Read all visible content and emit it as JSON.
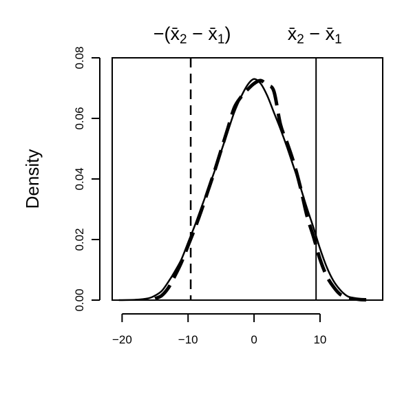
{
  "chart_data": {
    "type": "line",
    "title": "",
    "xlabel": "",
    "ylabel": "Density",
    "xlim": [
      -21.5,
      19.5
    ],
    "ylim": [
      0,
      0.08
    ],
    "x_ticks": [
      -20,
      -10,
      0,
      10
    ],
    "x_tick_labels": [
      "−20",
      "−10",
      "0",
      "10"
    ],
    "y_ticks": [
      0.0,
      0.02,
      0.04,
      0.06,
      0.08
    ],
    "y_tick_labels": [
      "0.00",
      "0.02",
      "0.04",
      "0.06",
      "0.08"
    ],
    "grid": false,
    "legend": "none",
    "series": [
      {
        "style": "solid",
        "x": [
          -20.5,
          -18,
          -16,
          -15,
          -14,
          -13,
          -12,
          -11,
          -10,
          -9,
          -8,
          -7,
          -6,
          -5,
          -4,
          -3,
          -2,
          -1,
          0,
          1,
          2,
          3,
          4,
          5,
          6,
          7,
          8,
          9,
          10,
          11,
          12,
          13,
          14,
          15,
          16
        ],
        "y": [
          0.0,
          0.0001,
          0.0006,
          0.0015,
          0.003,
          0.006,
          0.0095,
          0.0135,
          0.019,
          0.0245,
          0.0305,
          0.0365,
          0.0425,
          0.049,
          0.0555,
          0.062,
          0.067,
          0.071,
          0.073,
          0.0715,
          0.0675,
          0.062,
          0.0565,
          0.0505,
          0.044,
          0.0375,
          0.0305,
          0.024,
          0.017,
          0.011,
          0.0065,
          0.0035,
          0.0015,
          0.0006,
          0.0002
        ]
      },
      {
        "style": "dashed",
        "x": [
          -15,
          -14,
          -13,
          -12,
          -11,
          -10,
          -9,
          -8,
          -7,
          -6,
          -5,
          -4,
          -3,
          -2,
          -1,
          0,
          1,
          2,
          3,
          4,
          5,
          6,
          7,
          8,
          9,
          10,
          11,
          12,
          13,
          14,
          15,
          16,
          17
        ],
        "y": [
          0.0005,
          0.0015,
          0.004,
          0.008,
          0.0125,
          0.018,
          0.0235,
          0.0295,
          0.036,
          0.0425,
          0.0495,
          0.0565,
          0.0635,
          0.067,
          0.0695,
          0.0715,
          0.0725,
          0.071,
          0.069,
          0.058,
          0.052,
          0.0455,
          0.0375,
          0.028,
          0.021,
          0.0135,
          0.008,
          0.0045,
          0.002,
          0.001,
          0.0005,
          0.0002,
          0.0001
        ]
      }
    ],
    "vertical_lines": [
      {
        "x": -9.6,
        "style": "dashed",
        "label": "−(x̄2 − x̄1)"
      },
      {
        "x": 9.4,
        "style": "solid",
        "label": "x̄2 − x̄1"
      }
    ]
  }
}
